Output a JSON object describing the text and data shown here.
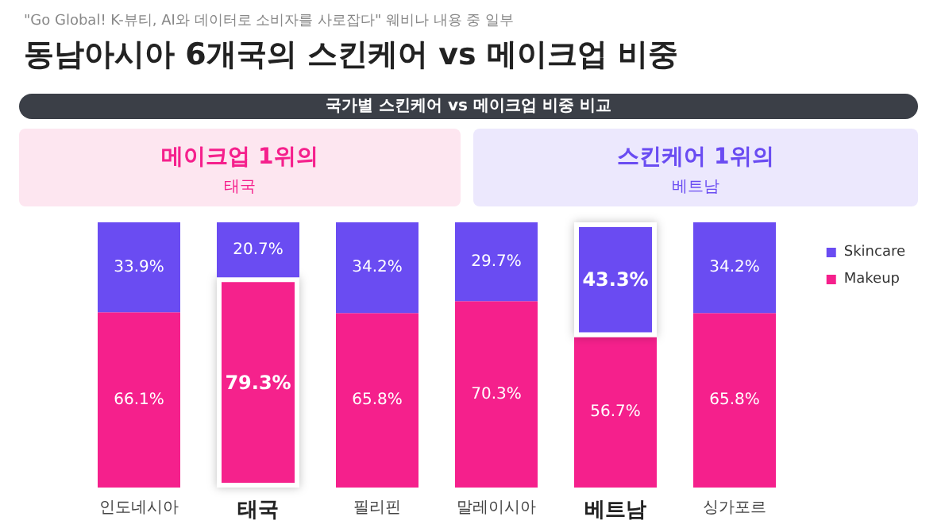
{
  "chart_data": {
    "type": "bar",
    "title": "동남아시아 6개국의 스킨케어 vs 메이크업 비중",
    "subtitle": "\"Go Global! K-뷰티, AI와 데이터로 소비자를 사로잡다\" 웨비나 내용 중 일부",
    "annotations": [
      "국가별 스킨케어 vs 메이크업 비중 비교",
      "메이크업 1위의",
      "태국",
      "스킨케어 1위의",
      "베트남"
    ],
    "categories": [
      "인도네시아",
      "태국",
      "필리핀",
      "말레이시아",
      "베트남",
      "싱가포르"
    ],
    "stacked": true,
    "legend": "right",
    "series": [
      {
        "name": "Makeup",
        "color": "#f5208c",
        "values": [
          66.1,
          79.3,
          65.8,
          70.3,
          56.7,
          65.8
        ],
        "value_labels": [
          "66.1%",
          "79.3%",
          "65.8%",
          "70.3%",
          "56.7%",
          "65.8%"
        ]
      },
      {
        "name": "Skincare",
        "color": "#6a4cf2",
        "values": [
          33.9,
          20.7,
          34.2,
          29.7,
          43.3,
          34.2
        ],
        "value_labels": [
          "33.9%",
          "20.7%",
          "34.2%",
          "29.7%",
          "43.3%",
          "34.2%"
        ]
      }
    ]
  }
}
